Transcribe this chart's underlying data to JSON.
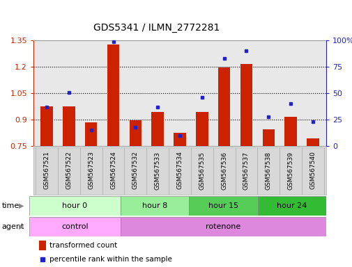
{
  "title": "GDS5341 / ILMN_2772281",
  "samples": [
    "GSM567521",
    "GSM567522",
    "GSM567523",
    "GSM567524",
    "GSM567532",
    "GSM567533",
    "GSM567534",
    "GSM567535",
    "GSM567536",
    "GSM567537",
    "GSM567538",
    "GSM567539",
    "GSM567540"
  ],
  "transformed_count": [
    0.975,
    0.975,
    0.885,
    1.325,
    0.895,
    0.945,
    0.825,
    0.945,
    1.195,
    1.215,
    0.845,
    0.915,
    0.795
  ],
  "percentile_rank": [
    37,
    51,
    15,
    99,
    18,
    37,
    10,
    46,
    83,
    90,
    28,
    40,
    23
  ],
  "baseline": 0.75,
  "ylim_left": [
    0.75,
    1.35
  ],
  "ylim_right": [
    0,
    100
  ],
  "yticks_left": [
    0.75,
    0.9,
    1.05,
    1.2,
    1.35
  ],
  "yticks_right": [
    0,
    25,
    50,
    75,
    100
  ],
  "time_groups": [
    {
      "label": "hour 0",
      "start": 0,
      "end": 4,
      "color": "#ccffcc"
    },
    {
      "label": "hour 8",
      "start": 4,
      "end": 7,
      "color": "#99ee99"
    },
    {
      "label": "hour 15",
      "start": 7,
      "end": 10,
      "color": "#55cc55"
    },
    {
      "label": "hour 24",
      "start": 10,
      "end": 13,
      "color": "#33bb33"
    }
  ],
  "agent_groups": [
    {
      "label": "control",
      "start": 0,
      "end": 4,
      "color": "#ffaaff"
    },
    {
      "label": "rotenone",
      "start": 4,
      "end": 13,
      "color": "#dd88dd"
    }
  ],
  "bar_color": "#cc2200",
  "dot_color": "#2222cc",
  "grid_color": "#000000",
  "chart_bg": "#e8e8e8",
  "label_bg": "#d8d8d8",
  "left_axis_color": "#cc2200",
  "right_axis_color": "#2222cc",
  "title_fontsize": 10,
  "tick_fontsize": 8,
  "sample_fontsize": 6.5,
  "row_fontsize": 8,
  "legend_fontsize": 7.5
}
